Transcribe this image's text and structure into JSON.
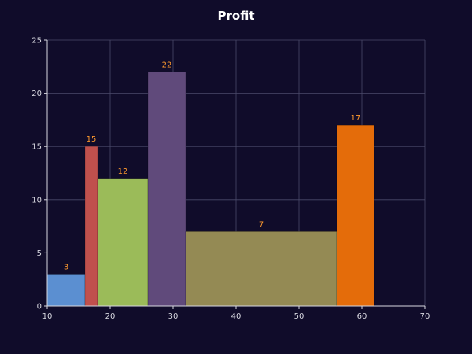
{
  "chart_data": {
    "type": "bar",
    "title": "Profit",
    "xlabel": "",
    "ylabel": "",
    "xlim": [
      10,
      70
    ],
    "ylim": [
      0,
      25
    ],
    "x_ticks": [
      10,
      20,
      30,
      40,
      50,
      60,
      70
    ],
    "y_ticks": [
      0,
      5,
      10,
      15,
      20,
      25
    ],
    "grid": true,
    "bars": [
      {
        "x_start": 10,
        "x_end": 16,
        "value": 3,
        "label": "3",
        "color": "#5b8fd1"
      },
      {
        "x_start": 16,
        "x_end": 18,
        "value": 15,
        "label": "15",
        "color": "#c0504d"
      },
      {
        "x_start": 18,
        "x_end": 26,
        "value": 12,
        "label": "12",
        "color": "#9bbb59"
      },
      {
        "x_start": 26,
        "x_end": 32,
        "value": 22,
        "label": "22",
        "color": "#604a7b"
      },
      {
        "x_start": 32,
        "x_end": 56,
        "value": 7,
        "label": "7",
        "color": "#948a54"
      },
      {
        "x_start": 56,
        "x_end": 62,
        "value": 17,
        "label": "17",
        "color": "#e46c0a"
      }
    ]
  },
  "colors": {
    "background": "#100c2a",
    "grid": "#4a4a6a",
    "axis": "#d8d8e0",
    "data_label": "#ff9a2e",
    "title": "#ffffff"
  }
}
